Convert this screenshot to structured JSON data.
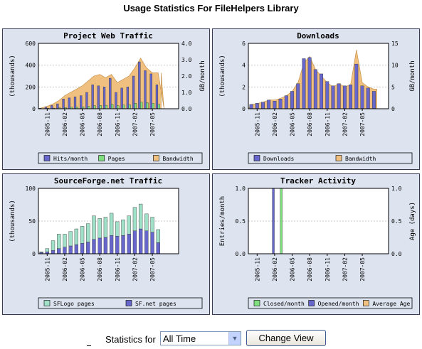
{
  "page": {
    "title": "Usage Statistics For FileHelpers Library"
  },
  "controls": {
    "statistics_label": "Statistics for",
    "period_value": "All Time",
    "change_view_label": "Change View"
  },
  "chart_data": [
    {
      "id": "web",
      "type": "bar",
      "title": "Project Web Traffic",
      "ylabel": "(thousands)",
      "y2label": "GB/month",
      "ylim": [
        0,
        600
      ],
      "y2lim": [
        0,
        4.0
      ],
      "yticks": [
        "0",
        "200",
        "400",
        "600"
      ],
      "y2ticks": [
        "0.0",
        "1.0",
        "2.0",
        "3.0",
        "4.0"
      ],
      "xticks": [
        "2005-11",
        "2006-02",
        "2006-05",
        "2006-08",
        "2006-11",
        "2007-02",
        "2007-05"
      ],
      "n": 24,
      "series": [
        {
          "name": "Hits/month",
          "color": "#6666cc",
          "values": [
            5,
            15,
            30,
            45,
            90,
            100,
            110,
            120,
            150,
            220,
            210,
            200,
            280,
            150,
            190,
            200,
            300,
            430,
            350,
            320,
            220,
            0,
            0,
            0
          ]
        },
        {
          "name": "Pages",
          "color": "#80e080",
          "values": [
            2,
            4,
            6,
            8,
            12,
            14,
            16,
            18,
            22,
            28,
            30,
            32,
            40,
            28,
            34,
            36,
            50,
            60,
            55,
            50,
            40,
            0,
            0,
            0
          ]
        },
        {
          "name": "Bandwidth",
          "color": "#f0c080",
          "axis": "y2",
          "values": [
            0.05,
            0.15,
            0.3,
            0.5,
            0.8,
            1.0,
            1.2,
            1.4,
            1.7,
            2.0,
            2.1,
            1.9,
            2.1,
            1.6,
            1.8,
            2.0,
            2.5,
            3.1,
            2.5,
            2.2,
            2.2,
            0,
            0,
            0
          ]
        }
      ],
      "legend": [
        "Hits/month",
        "Pages",
        "Bandwidth"
      ]
    },
    {
      "id": "downloads",
      "type": "bar",
      "title": "Downloads",
      "ylabel": "(thousands)",
      "y2label": "GB/month",
      "ylim": [
        0,
        6
      ],
      "y2lim": [
        0,
        15
      ],
      "yticks": [
        "0",
        "2",
        "4",
        "6"
      ],
      "y2ticks": [
        "0",
        "5",
        "10",
        "15"
      ],
      "xticks": [
        "2005-11",
        "2006-02",
        "2006-05",
        "2006-08",
        "2006-11",
        "2007-02",
        "2007-05"
      ],
      "n": 24,
      "series": [
        {
          "name": "Downloads",
          "color": "#6666cc",
          "values": [
            0.4,
            0.5,
            0.6,
            0.8,
            0.7,
            0.9,
            1.2,
            1.6,
            2.3,
            4.6,
            4.7,
            3.6,
            3.2,
            2.5,
            2.1,
            2.3,
            2.1,
            2.2,
            4.1,
            2.1,
            1.9,
            1.6,
            0,
            0
          ]
        },
        {
          "name": "Bandwidth",
          "color": "#f0c080",
          "axis": "y2",
          "values": [
            1.0,
            1.2,
            1.5,
            2.0,
            2.0,
            2.4,
            3.0,
            4.0,
            6.0,
            10.5,
            12.0,
            9.0,
            7.5,
            6.0,
            5.0,
            5.8,
            5.0,
            5.5,
            13.5,
            6.0,
            5.0,
            4.5,
            0,
            0
          ]
        }
      ],
      "legend": [
        "Downloads",
        "Bandwidth"
      ]
    },
    {
      "id": "sf",
      "type": "bar",
      "title": "SourceForge.net Traffic",
      "ylabel": "(thousands)",
      "ylim": [
        0,
        100
      ],
      "yticks": [
        "0",
        "50",
        "100"
      ],
      "xticks": [
        "2005-11",
        "2006-02",
        "2006-05",
        "2006-08",
        "2006-11",
        "2007-02",
        "2007-05"
      ],
      "n": 24,
      "stacked": true,
      "series": [
        {
          "name": "SF.net pages",
          "color": "#6666cc",
          "values": [
            2,
            3,
            5,
            8,
            10,
            12,
            14,
            16,
            18,
            22,
            24,
            25,
            28,
            27,
            28,
            30,
            35,
            38,
            35,
            33,
            17,
            0,
            0,
            0
          ]
        },
        {
          "name": "SFLogo pages",
          "color": "#a0e0c8",
          "values": [
            1,
            5,
            15,
            22,
            20,
            22,
            24,
            26,
            28,
            36,
            30,
            31,
            34,
            22,
            24,
            28,
            36,
            38,
            26,
            23,
            20,
            0,
            0,
            0
          ]
        }
      ],
      "legend": [
        "SFLogo pages",
        "SF.net pages"
      ]
    },
    {
      "id": "tracker",
      "type": "bar",
      "title": "Tracker Activity",
      "ylabel": "Entries/month",
      "y2label": "Age (days)",
      "ylim": [
        0,
        1.0
      ],
      "y2lim": [
        0,
        1.0
      ],
      "yticks": [
        "0.0",
        "0.5",
        "1.0"
      ],
      "y2ticks": [
        "0.0",
        "0.5",
        "1.0"
      ],
      "xticks": [
        "2005-11",
        "2006-02",
        "2006-05",
        "2006-08",
        "2006-11",
        "2007-02",
        "2007-05"
      ],
      "n": 24,
      "series": [
        {
          "name": "Opened/month",
          "color": "#6666cc",
          "values": [
            0,
            0,
            0,
            0,
            1,
            0,
            0,
            0,
            0,
            0,
            0,
            0,
            0,
            0,
            0,
            0,
            0,
            0,
            0,
            0,
            0,
            0,
            0,
            0
          ]
        },
        {
          "name": "Closed/month",
          "color": "#80e080",
          "values": [
            0,
            0,
            0,
            0,
            0,
            1,
            0,
            0,
            0,
            0,
            0,
            0,
            0,
            0,
            0,
            0,
            0,
            0,
            0,
            0,
            0,
            0,
            0,
            0
          ]
        }
      ],
      "legend": [
        "Closed/month",
        "Opened/month",
        "Average Age"
      ],
      "legend_colors": [
        "#80e080",
        "#6666cc",
        "#f0c080"
      ]
    }
  ]
}
